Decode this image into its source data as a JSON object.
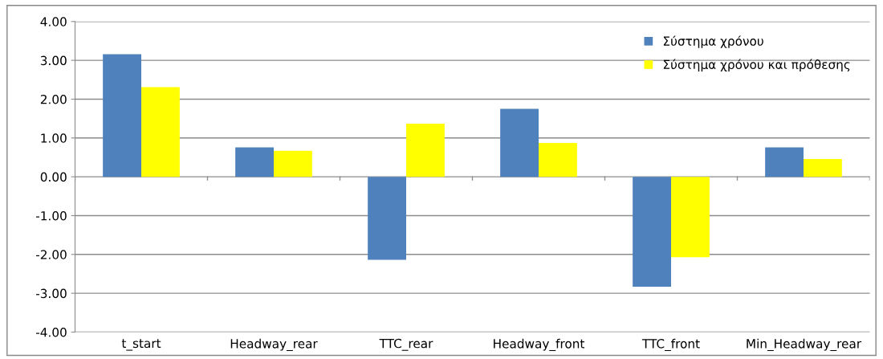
{
  "chart_data": {
    "type": "bar",
    "categories": [
      "t_start",
      "Headway_rear",
      "TTC_rear",
      "Headway_front",
      "TTC_front",
      "Min_Headway_rear"
    ],
    "series": [
      {
        "name": "Σύστημα χρόνου",
        "color": "#4f81bd",
        "values": [
          3.16,
          0.76,
          -2.14,
          1.75,
          -2.83,
          0.76
        ]
      },
      {
        "name": "Σύστημα χρόνου και πρόθεσης",
        "color": "#ffff00",
        "values": [
          2.31,
          0.67,
          1.37,
          0.87,
          -2.07,
          0.46
        ]
      }
    ],
    "ylim": [
      -4,
      4
    ],
    "yticks": [
      {
        "value": -4,
        "label": "-4.00"
      },
      {
        "value": -3,
        "label": "-3.00"
      },
      {
        "value": -2,
        "label": "-2.00"
      },
      {
        "value": -1,
        "label": "-1.00"
      },
      {
        "value": 0,
        "label": "0.00"
      },
      {
        "value": 1,
        "label": "1.00"
      },
      {
        "value": 2,
        "label": "2.00"
      },
      {
        "value": 3,
        "label": "3.00"
      },
      {
        "value": 4,
        "label": "4.00"
      }
    ],
    "grid": "y",
    "legend": "top right"
  }
}
